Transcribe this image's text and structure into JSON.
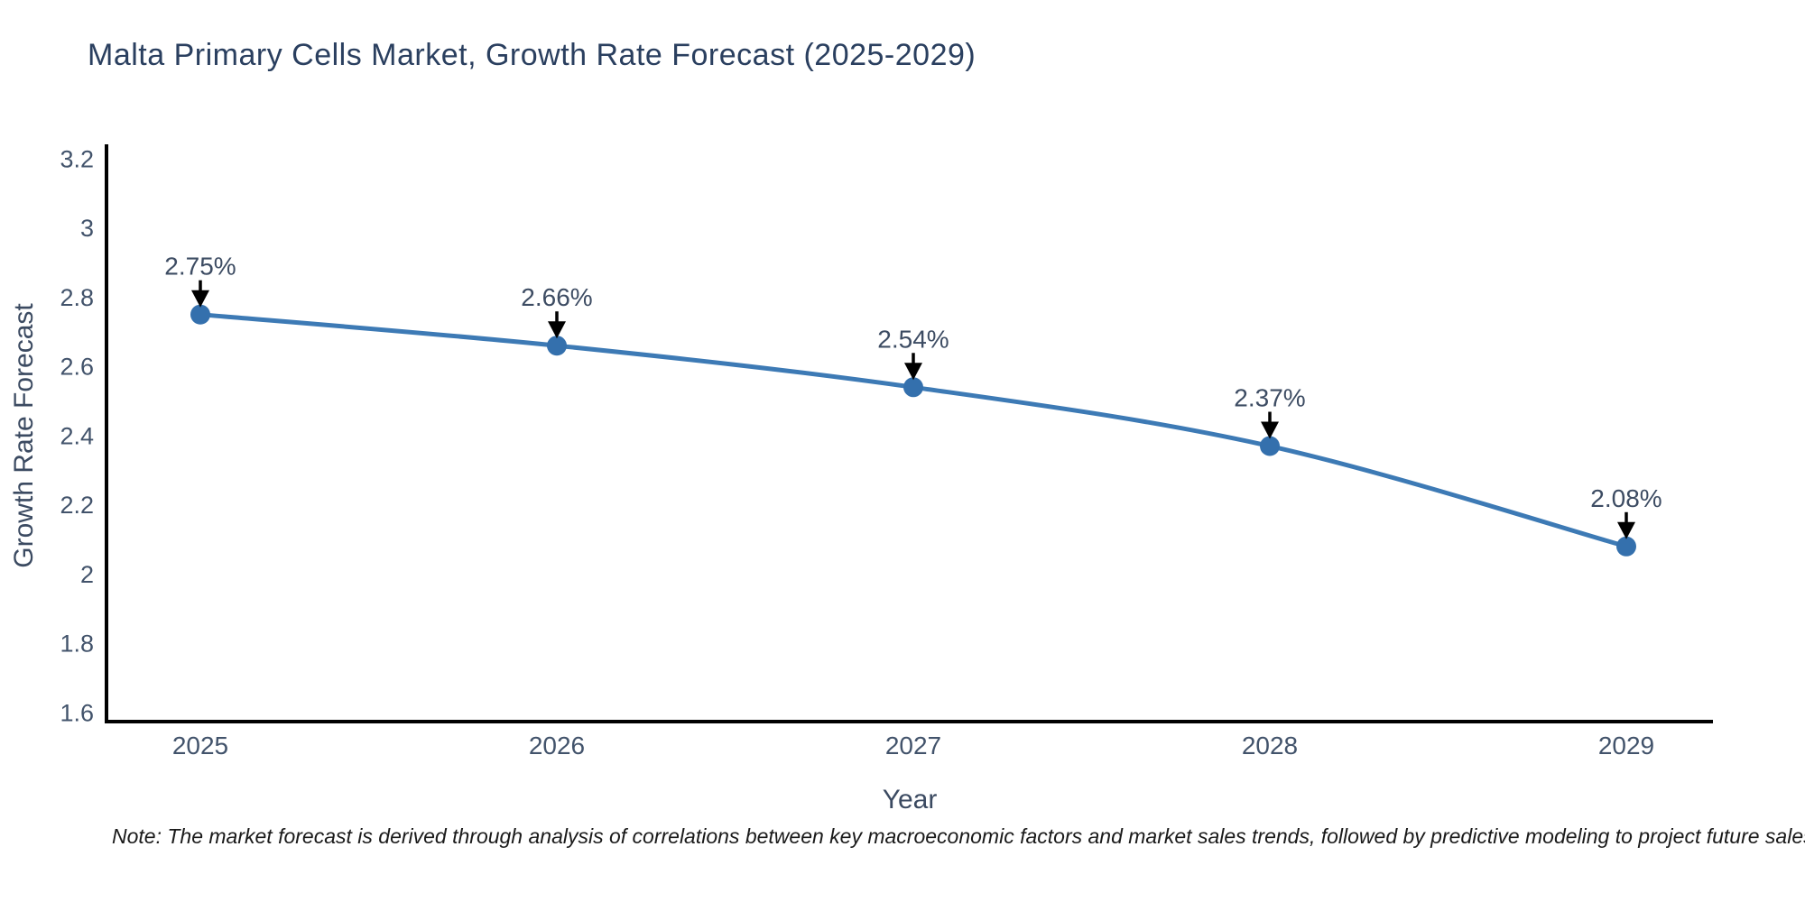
{
  "note": "Note: The market forecast is derived through analysis of correlations between key macroeconomic factors and market sales trends, followed by predictive modeling to project future sales",
  "chart_data": {
    "type": "line",
    "title": "Malta Primary Cells Market, Growth Rate Forecast (2025-2029)",
    "xlabel": "Year",
    "ylabel": "Growth Rate Forecast",
    "categories": [
      "2025",
      "2026",
      "2027",
      "2028",
      "2029"
    ],
    "series": [
      {
        "name": "Growth Rate Forecast",
        "values": [
          2.75,
          2.66,
          2.54,
          2.37,
          2.08
        ],
        "point_labels": [
          "2.75%",
          "2.66%",
          "2.54%",
          "2.37%",
          "2.08%"
        ]
      }
    ],
    "ylim": [
      1.6,
      3.2
    ],
    "yticks": [
      3.2,
      3,
      2.8,
      2.6,
      2.4,
      2.2,
      2,
      1.8,
      1.6
    ],
    "ytick_labels": [
      "3.2",
      "3",
      "2.8",
      "2.6",
      "2.4",
      "2.2",
      "2",
      "1.8",
      "1.6"
    ],
    "grid": false,
    "line_shape": "spline",
    "legend": "none",
    "colors": {
      "line": "#3d7ab5",
      "marker": "#3470ad",
      "axis": "#000000",
      "title_text": "#2a3f5f",
      "tick_text": "#42536b",
      "axis_label_text": "#3b4a61",
      "annotation_text": "#3d4c63",
      "arrow": "#000000",
      "note_text": "#1a1a1a",
      "background": "#ffffff"
    }
  }
}
